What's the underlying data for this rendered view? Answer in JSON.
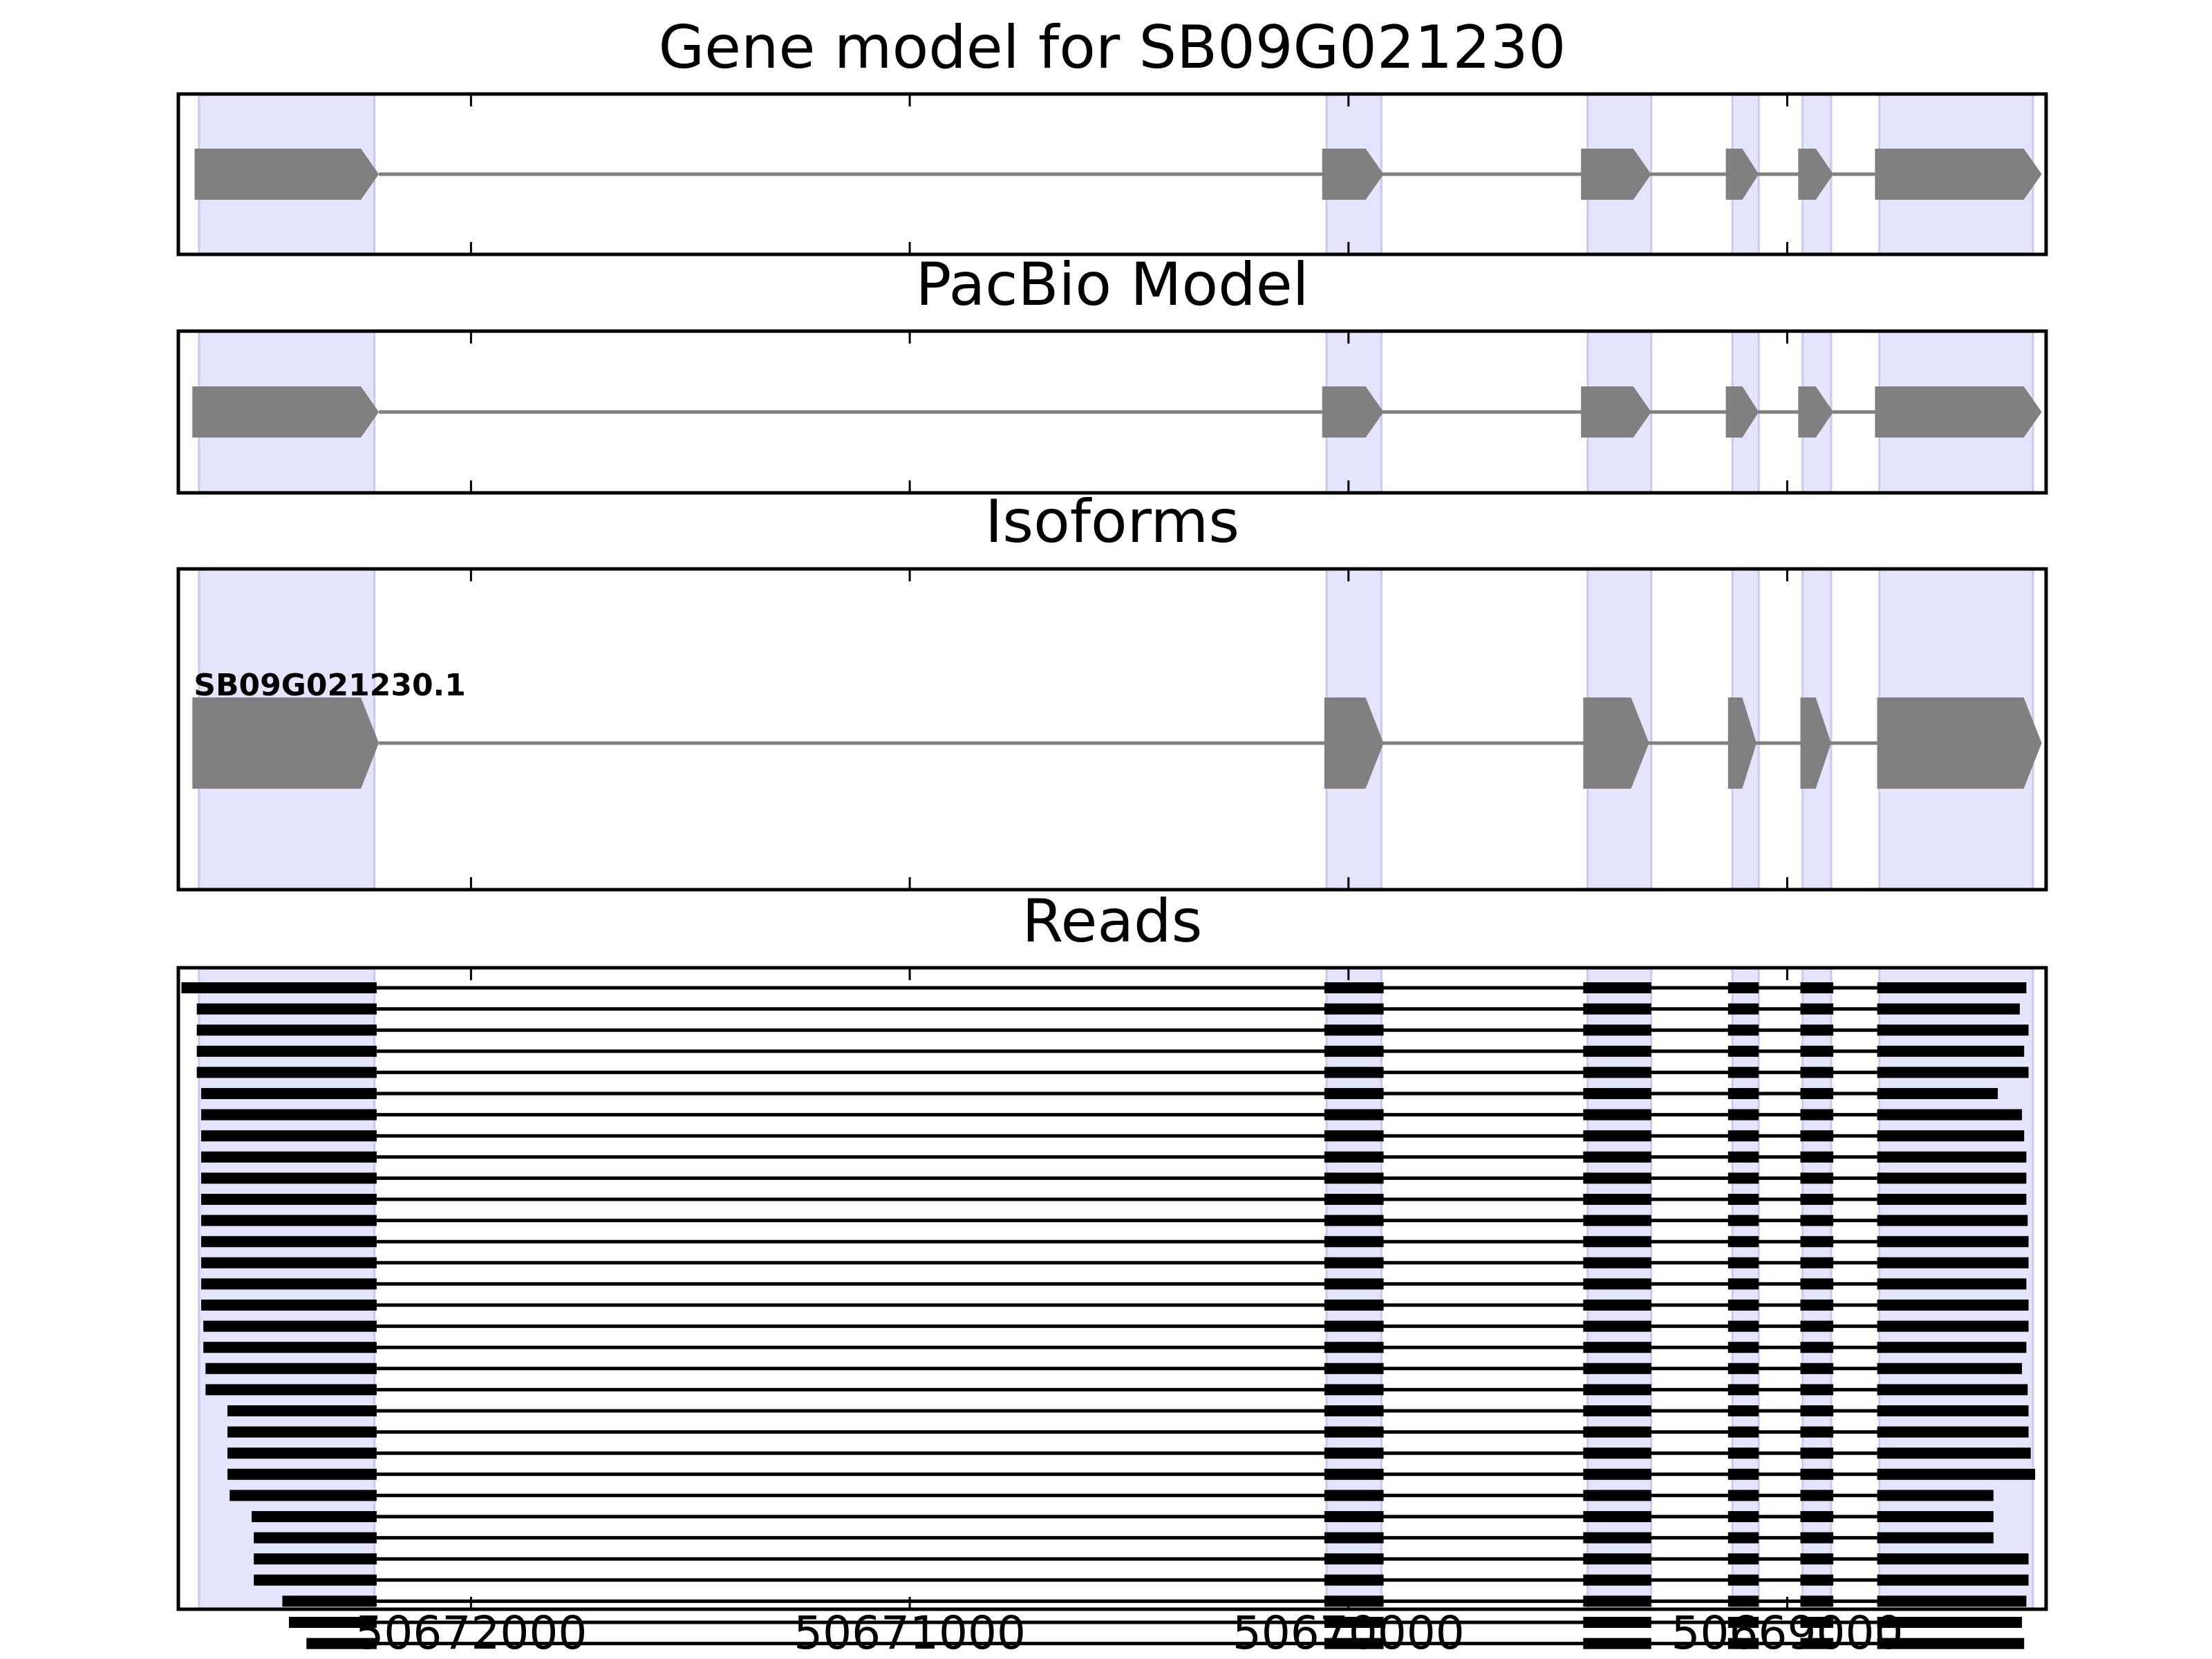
{
  "figure_title": "Gene model for SB09G021230",
  "chart_data": {
    "type": "gene-track",
    "title": "Gene model for SB09G021230",
    "genomic_range": [
      50672667,
      50668410
    ],
    "xaxis": {
      "orientation": "reversed",
      "ticks": [
        50673000,
        50672000,
        50671000,
        50670000,
        50669000
      ],
      "tick_labels": [
        "50672000",
        "50671000",
        "50670000",
        "50669000"
      ],
      "labeled_ticks": [
        50672000,
        50671000,
        50670000,
        50669000
      ]
    },
    "colors": {
      "exon": "#808080",
      "intron": "#808080",
      "read": "#000000",
      "highlight": "#e4e4fc",
      "highlight_edge": "#c9c9f0",
      "frame": "#000000"
    },
    "highlight_regions": [
      [
        50672620,
        50672220
      ],
      [
        50670050,
        50669925
      ],
      [
        50669455,
        50669310
      ],
      [
        50669125,
        50669065
      ],
      [
        50668965,
        50668900
      ],
      [
        50668790,
        50668440
      ]
    ],
    "panels": [
      {
        "title": "Gene model for SB09G021230",
        "kind": "model",
        "strand": "-",
        "exons": [
          [
            50672630,
            50672210
          ],
          [
            50670060,
            50669920
          ],
          [
            50669470,
            50669310
          ],
          [
            50669140,
            50669065
          ],
          [
            50668975,
            50668895
          ],
          [
            50668800,
            50668420
          ]
        ]
      },
      {
        "title": "PacBio Model",
        "kind": "model",
        "strand": "-",
        "exons": [
          [
            50672635,
            50672210
          ],
          [
            50670060,
            50669920
          ],
          [
            50669470,
            50669310
          ],
          [
            50669140,
            50669065
          ],
          [
            50668975,
            50668895
          ],
          [
            50668800,
            50668420
          ]
        ]
      },
      {
        "title": "Isoforms",
        "kind": "isoform",
        "strand": "-",
        "isoform_label": "SB09G021230.1",
        "exons": [
          [
            50672635,
            50672210
          ],
          [
            50670055,
            50669920
          ],
          [
            50669465,
            50669315
          ],
          [
            50669135,
            50669070
          ],
          [
            50668970,
            50668900
          ],
          [
            50668795,
            50668420
          ]
        ]
      },
      {
        "title": "Reads",
        "kind": "reads",
        "inner_exons": [
          [
            50670055,
            50669920
          ],
          [
            50669465,
            50669310
          ],
          [
            50669135,
            50669065
          ],
          [
            50668970,
            50668895
          ]
        ],
        "last_exon_start": 50668795,
        "first_exon_end": 50672215,
        "reads": [
          [
            50672660,
            50668455
          ],
          [
            50672625,
            50668470
          ],
          [
            50672625,
            50668450
          ],
          [
            50672625,
            50668460
          ],
          [
            50672625,
            50668450
          ],
          [
            50672615,
            50668520
          ],
          [
            50672615,
            50668465
          ],
          [
            50672615,
            50668460
          ],
          [
            50672615,
            50668455
          ],
          [
            50672615,
            50668455
          ],
          [
            50672615,
            50668455
          ],
          [
            50672615,
            50668452
          ],
          [
            50672615,
            50668450
          ],
          [
            50672615,
            50668450
          ],
          [
            50672615,
            50668455
          ],
          [
            50672615,
            50668450
          ],
          [
            50672610,
            50668450
          ],
          [
            50672610,
            50668455
          ],
          [
            50672605,
            50668465
          ],
          [
            50672605,
            50668452
          ],
          [
            50672555,
            50668450
          ],
          [
            50672555,
            50668450
          ],
          [
            50672555,
            50668445
          ],
          [
            50672555,
            50668435
          ],
          [
            50672550,
            50668530
          ],
          [
            50672500,
            50668530
          ],
          [
            50672495,
            50668530
          ],
          [
            50672495,
            50668450
          ],
          [
            50672495,
            50668450
          ],
          [
            50672430,
            50668455
          ],
          [
            50672415,
            50668465
          ],
          [
            50672375,
            50668460
          ]
        ]
      }
    ]
  }
}
